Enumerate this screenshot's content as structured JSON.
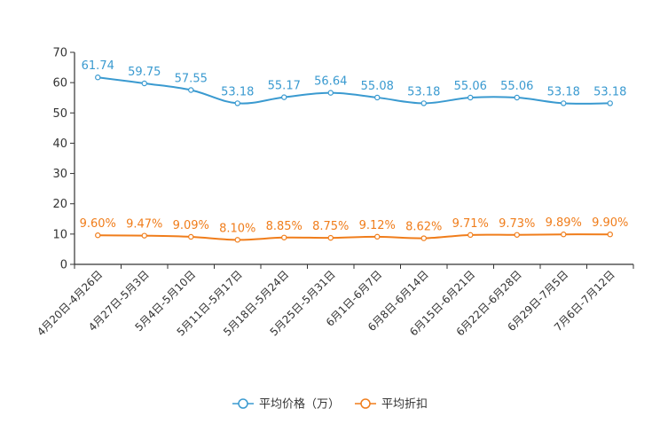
{
  "chart_data": {
    "type": "line",
    "categories": [
      "4月20日-4月26日",
      "4月27日-5月3日",
      "5月4日-5月10日",
      "5月11日-5月17日",
      "5月18日-5月24日",
      "5月25日-5月31日",
      "6月1日-6月7日",
      "6月8日-6月14日",
      "6月15日-6月21日",
      "6月22日-6月28日",
      "6月29日-7月5日",
      "7月6日-7月12日"
    ],
    "series": [
      {
        "name": "平均价格（万）",
        "color": "#3a9ad0",
        "values": [
          61.74,
          59.75,
          57.55,
          53.18,
          55.17,
          56.64,
          55.08,
          53.18,
          55.06,
          55.06,
          53.18,
          53.18
        ],
        "labels": [
          "61.74",
          "59.75",
          "57.55",
          "53.18",
          "55.17",
          "56.64",
          "55.08",
          "53.18",
          "55.06",
          "55.06",
          "53.18",
          "53.18"
        ]
      },
      {
        "name": "平均折扣",
        "color": "#f07d1b",
        "values": [
          9.6,
          9.47,
          9.09,
          8.1,
          8.85,
          8.75,
          9.12,
          8.62,
          9.71,
          9.73,
          9.89,
          9.9
        ],
        "labels": [
          "9.60%",
          "9.47%",
          "9.09%",
          "8.10%",
          "8.85%",
          "8.75%",
          "9.12%",
          "8.62%",
          "9.71%",
          "9.73%",
          "9.89%",
          "9.90%"
        ]
      }
    ],
    "ylim": [
      0,
      70
    ],
    "yticks": [
      0,
      10,
      20,
      30,
      40,
      50,
      60,
      70
    ],
    "title": "",
    "xlabel": "",
    "ylabel": "",
    "grid": false,
    "legend_position": "bottom-center"
  }
}
